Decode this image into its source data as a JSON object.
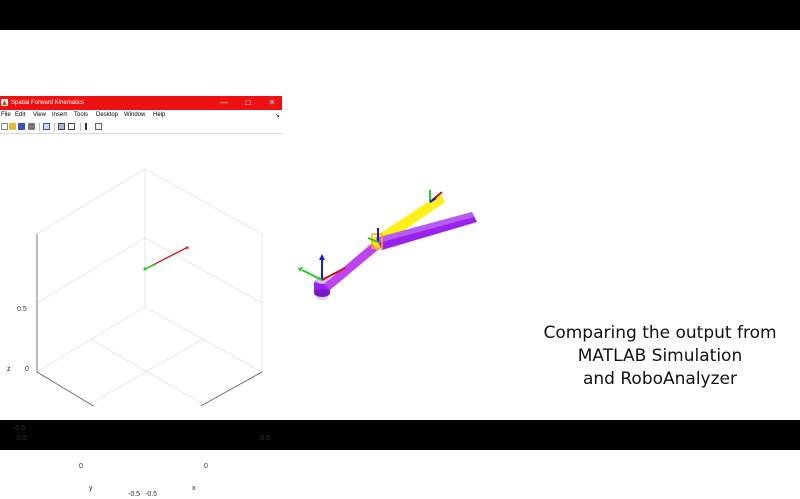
{
  "window": {
    "title": "Spatial Forward Kinematics",
    "minimize_glyph": "—",
    "maximize_glyph": "☐",
    "close_glyph": "✕"
  },
  "menu": {
    "items": [
      "File",
      "Edit",
      "View",
      "Insert",
      "Tools",
      "Desktop",
      "Window",
      "Help"
    ],
    "dock_glyph": "↘"
  },
  "toolbar": {
    "icons": [
      "new-file-icon",
      "open-folder-icon",
      "save-icon",
      "print-icon",
      "print-preview-icon",
      "data-cursor-icon",
      "insert-legend-icon",
      "insert-colorbar-icon",
      "pointer-icon",
      "edit-plot-icon"
    ]
  },
  "axes": {
    "z_label": "z",
    "y_label": "y",
    "x_label": "x",
    "z_ticks": [
      "0.5",
      "0",
      "-0.5"
    ],
    "y_ticks": [
      "0.5",
      "0",
      "-0.5"
    ],
    "x_ticks": [
      "-0.5",
      "0",
      "0.5"
    ],
    "grid": true
  },
  "colors": {
    "titlebar": "#ee1111",
    "link_red": "#cc0000",
    "link_green": "#22cc22",
    "robot_link": "#9922ee",
    "robot_link_alt": "#ffee00"
  },
  "caption": {
    "line1": "Comparing the output from",
    "line2": "MATLAB Simulation",
    "line3": "and RoboAnalyzer"
  }
}
